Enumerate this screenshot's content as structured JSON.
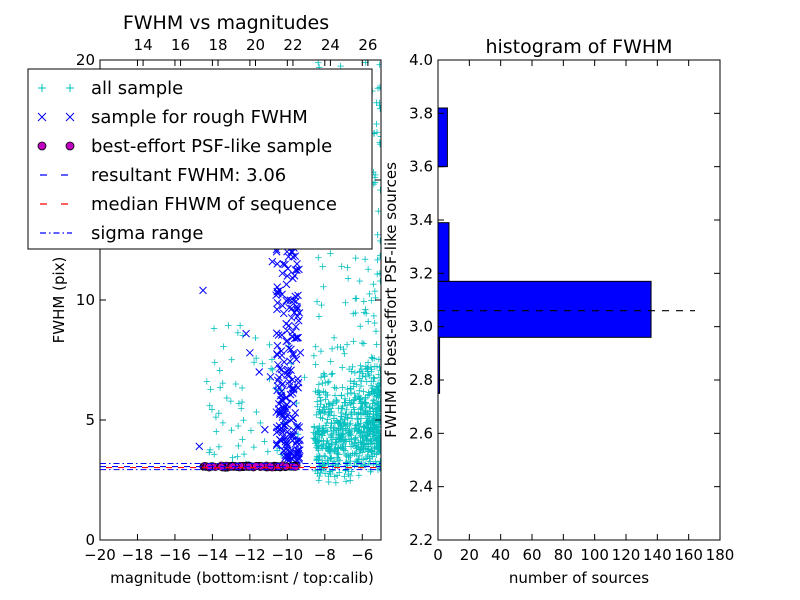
{
  "chart_data": [
    {
      "type": "scatter",
      "title": "FWHM vs magnitudes",
      "xlabel": "magnitude (bottom:isnt / top:calib)",
      "ylabel": "FWHM (pix)",
      "xlim": [
        -20,
        -5
      ],
      "ylim": [
        0,
        20
      ],
      "x_ticks": [
        -20,
        -18,
        -16,
        -14,
        -12,
        -10,
        -8,
        -6
      ],
      "y_ticks": [
        0,
        5,
        10,
        15,
        20
      ],
      "y_tick_labels": [
        "0",
        "5",
        "10",
        "",
        "20"
      ],
      "top_xlim": [
        11.7,
        26.7
      ],
      "top_ticks": [
        14,
        16,
        18,
        20,
        22,
        24,
        26
      ],
      "grid": false,
      "legend_position": "upper-left",
      "legend": [
        {
          "label": "all sample",
          "marker": "+",
          "color": "#00bfbf"
        },
        {
          "label": "sample for rough FWHM",
          "marker": "x",
          "color": "#0000ff"
        },
        {
          "label": "best-effort PSF-like sample",
          "marker": "o",
          "color": "#bf00bf"
        },
        {
          "label": "resultant FWHM: 3.06",
          "linestyle": "dashed",
          "color": "#0000ff"
        },
        {
          "label": "median FHWM of sequence",
          "linestyle": "dashed",
          "color": "#ff0000"
        },
        {
          "label": "sigma range",
          "linestyle": "dashdot",
          "color": "#0000ff"
        }
      ],
      "resultant_fwhm": 3.06,
      "sigma_range": [
        2.93,
        3.19
      ],
      "series": [
        {
          "name": "all sample",
          "marker": "+",
          "color": "#00bfbf",
          "distribution": "faint tail dense between x=-8.5 and -5, FWHM 1.5 to 20; sparse scatter x=-14 to -9"
        },
        {
          "name": "sample for rough FWHM",
          "marker": "x",
          "color": "#0000ff",
          "points": [
            [
              -14.5,
              10.4
            ],
            [
              -14.7,
              3.9
            ],
            [
              -12.2,
              8.6
            ],
            [
              -12.0,
              7.8
            ],
            [
              -11.3,
              15.2
            ],
            [
              -11.0,
              12.9
            ],
            [
              -10.8,
              11.6
            ],
            [
              -10.6,
              10.2
            ],
            [
              -10.5,
              7.3
            ],
            [
              -10.2,
              12.4
            ],
            [
              -10.0,
              11.0
            ],
            [
              -9.7,
              11.8
            ],
            [
              -9.5,
              15.8
            ],
            [
              -11.5,
              7.0
            ],
            [
              -10.9,
              6.8
            ],
            [
              -10.3,
              6.2
            ],
            [
              -9.9,
              6.6
            ],
            [
              -9.6,
              8.4
            ],
            [
              -10.1,
              4.1
            ],
            [
              -9.8,
              5.0
            ],
            [
              -11.2,
              4.6
            ],
            [
              -9.4,
              3.6
            ]
          ]
        },
        {
          "name": "best-effort PSF-like sample",
          "marker": "o",
          "color": "#bf00bf",
          "x_range": [
            -14.5,
            -9.5
          ],
          "y_center": 3.06,
          "y_spread": 0.08
        }
      ]
    },
    {
      "type": "bar",
      "orientation": "horizontal",
      "title": "histogram of FWHM",
      "xlabel": "number of sources",
      "ylabel": "FWHM of best-effort PSF-like sources",
      "xlim": [
        0,
        180
      ],
      "ylim": [
        2.2,
        4.0
      ],
      "x_ticks": [
        0,
        20,
        40,
        60,
        80,
        100,
        120,
        140,
        160,
        180
      ],
      "y_ticks": [
        2.2,
        2.4,
        2.6,
        2.8,
        3.0,
        3.2,
        3.4,
        3.6,
        3.8,
        4.0
      ],
      "grid": false,
      "bars": [
        {
          "y0": 2.75,
          "y1": 2.96,
          "value": 1
        },
        {
          "y0": 2.96,
          "y1": 3.17,
          "value": 136
        },
        {
          "y0": 3.17,
          "y1": 3.39,
          "value": 7
        },
        {
          "y0": 3.39,
          "y1": 3.6,
          "value": 0
        },
        {
          "y0": 3.6,
          "y1": 3.82,
          "value": 6
        }
      ],
      "bar_color": "#0000ff",
      "reference_line": {
        "value": 3.06,
        "linestyle": "dashed",
        "color": "#000000"
      }
    }
  ]
}
